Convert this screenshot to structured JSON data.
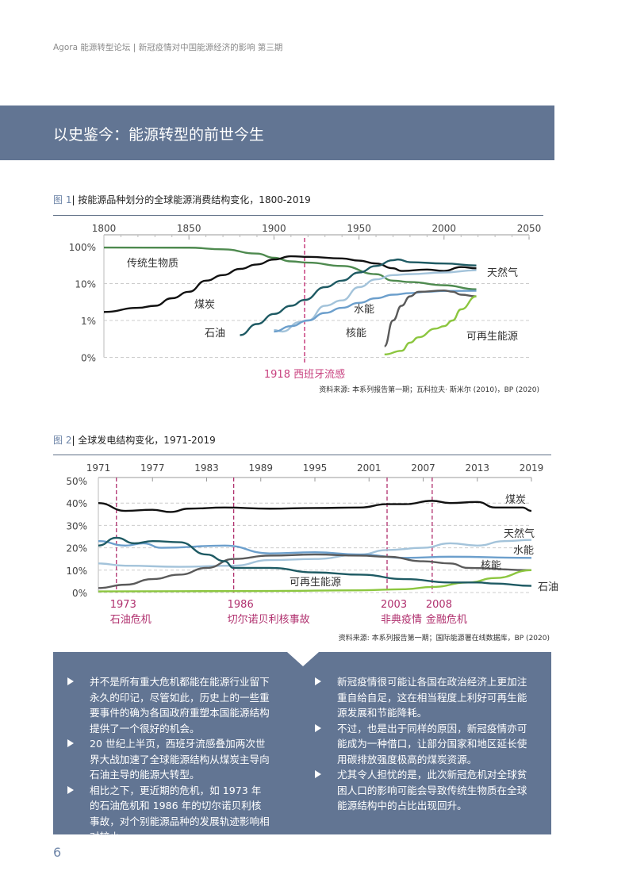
{
  "header": {
    "running_title": "Agora 能源转型论坛 | 新冠疫情对中国能源经济的影响 第三期"
  },
  "banner": {
    "title": "以史鉴今：能源转型的前世今生"
  },
  "figure1": {
    "label": "图 1",
    "caption": "| 按能源品种划分的全球能源消费结构变化，1800-2019",
    "source": "资料来源: 本系列报告第一期；瓦科拉夫· 斯米尔 (2010)，BP (2020)"
  },
  "figure2": {
    "label": "图 2",
    "caption": "| 全球发电结构变化，1971-2019",
    "source": "资料来源: 本系列报告第一期；国际能源署在线数据库，BP (2020)"
  },
  "chart_data": [
    {
      "type": "line",
      "title": "按能源品种划分的全球能源消费结构变化，1800-2019",
      "yscale": "log",
      "xlim": [
        1800,
        2050
      ],
      "ylim": [
        0.1,
        100
      ],
      "xticks": [
        "1800",
        "1850",
        "1900",
        "1950",
        "2000",
        "2050"
      ],
      "yticks": [
        {
          "v": 100,
          "label": "100%"
        },
        {
          "v": 10,
          "label": "10%"
        },
        {
          "v": 1,
          "label": "1%"
        },
        {
          "v": 0.1,
          "label": "0%"
        }
      ],
      "grid": "horizontal dashed",
      "annotations": [
        {
          "x": 1918,
          "label": "1918 西班牙流感"
        }
      ],
      "series": [
        {
          "name": "传统生物质",
          "color": "#4e8a4f",
          "points": [
            [
              1800,
              95
            ],
            [
              1850,
              94
            ],
            [
              1870,
              85
            ],
            [
              1890,
              65
            ],
            [
              1900,
              50
            ],
            [
              1910,
              40
            ],
            [
              1920,
              37
            ],
            [
              1940,
              30
            ],
            [
              1960,
              18
            ],
            [
              1970,
              12
            ],
            [
              1980,
              11
            ],
            [
              2000,
              9
            ],
            [
              2019,
              7
            ]
          ]
        },
        {
          "name": "煤炭",
          "color": "#111111",
          "points": [
            [
              1800,
              1.7
            ],
            [
              1820,
              2.2
            ],
            [
              1830,
              2.5
            ],
            [
              1840,
              4
            ],
            [
              1850,
              6
            ],
            [
              1860,
              12
            ],
            [
              1870,
              17
            ],
            [
              1880,
              25
            ],
            [
              1890,
              33
            ],
            [
              1900,
              45
            ],
            [
              1910,
              55
            ],
            [
              1920,
              53
            ],
            [
              1940,
              48
            ],
            [
              1950,
              42
            ],
            [
              1960,
              35
            ],
            [
              1970,
              26
            ],
            [
              1975,
              22
            ],
            [
              1990,
              24
            ],
            [
              2000,
              22
            ],
            [
              2010,
              28
            ],
            [
              2019,
              26
            ]
          ]
        },
        {
          "name": "石油",
          "color": "#1e5a63",
          "points": [
            [
              1880,
              0.4
            ],
            [
              1890,
              0.8
            ],
            [
              1900,
              1.5
            ],
            [
              1910,
              2.5
            ],
            [
              1918,
              3.6
            ],
            [
              1930,
              8
            ],
            [
              1940,
              12
            ],
            [
              1950,
              20
            ],
            [
              1960,
              30
            ],
            [
              1970,
              43
            ],
            [
              1973,
              45
            ],
            [
              1980,
              38
            ],
            [
              2000,
              35
            ],
            [
              2019,
              31
            ]
          ]
        },
        {
          "name": "天然气",
          "color": "#a3c3da",
          "points": [
            [
              1900,
              0.55
            ],
            [
              1905,
              0.5
            ],
            [
              1915,
              0.9
            ],
            [
              1920,
              1.0
            ],
            [
              1930,
              2.5
            ],
            [
              1940,
              3.5
            ],
            [
              1950,
              8
            ],
            [
              1960,
              13
            ],
            [
              1970,
              17
            ],
            [
              1980,
              18
            ],
            [
              2000,
              20
            ],
            [
              2019,
              23
            ]
          ]
        },
        {
          "name": "水能",
          "color": "#6c9fcc",
          "points": [
            [
              1900,
              0.5
            ],
            [
              1910,
              0.7
            ],
            [
              1920,
              1.0
            ],
            [
              1930,
              1.6
            ],
            [
              1940,
              2.2
            ],
            [
              1950,
              3
            ],
            [
              1960,
              4
            ],
            [
              1970,
              5
            ],
            [
              1980,
              5.5
            ],
            [
              1990,
              6
            ],
            [
              2000,
              6.3
            ],
            [
              2019,
              6.4
            ]
          ]
        },
        {
          "name": "核能",
          "color": "#5a5a5a",
          "points": [
            [
              1965,
              0.2
            ],
            [
              1970,
              1
            ],
            [
              1975,
              2.5
            ],
            [
              1980,
              4.5
            ],
            [
              1985,
              6
            ],
            [
              2000,
              6.5
            ],
            [
              2005,
              6
            ],
            [
              2010,
              5
            ],
            [
              2019,
              4.5
            ]
          ]
        },
        {
          "name": "可再生能源",
          "color": "#8cc63f",
          "points": [
            [
              1965,
              0.12
            ],
            [
              1975,
              0.15
            ],
            [
              1980,
              0.25
            ],
            [
              1985,
              0.35
            ],
            [
              1995,
              0.6
            ],
            [
              2000,
              0.7
            ],
            [
              2005,
              1
            ],
            [
              2010,
              2
            ],
            [
              2019,
              4.5
            ]
          ]
        }
      ]
    },
    {
      "type": "line",
      "title": "全球发电结构变化，1971-2019",
      "xlim": [
        1971,
        2019
      ],
      "ylim": [
        0,
        50
      ],
      "xticks": [
        "1971",
        "1977",
        "1983",
        "1989",
        "1995",
        "2001",
        "2007",
        "2013",
        "2019"
      ],
      "yticks": [
        "50%",
        "40%",
        "30%",
        "20%",
        "10%",
        "0%"
      ],
      "grid": "horizontal dashed",
      "annotations": [
        {
          "x": 1973,
          "year": "1973",
          "label": "石油危机"
        },
        {
          "x": 1986,
          "year": "1986",
          "label": "切尔诺贝利核事故"
        },
        {
          "x": 2003,
          "year": "2003",
          "label": "非典疫情"
        },
        {
          "x": 2008,
          "year": "2008",
          "label": "金融危机"
        }
      ],
      "series": [
        {
          "name": "煤炭",
          "color": "#111111",
          "points": [
            [
              1971,
              40
            ],
            [
              1974,
              36.5
            ],
            [
              1977,
              37
            ],
            [
              1979,
              36
            ],
            [
              1981,
              37.5
            ],
            [
              1985,
              38
            ],
            [
              1990,
              37.5
            ],
            [
              1995,
              37.8
            ],
            [
              2000,
              38
            ],
            [
              2003,
              39.5
            ],
            [
              2005,
              39.5
            ],
            [
              2008,
              41
            ],
            [
              2010,
              40
            ],
            [
              2013,
              40.5
            ],
            [
              2015,
              38
            ],
            [
              2018,
              38
            ],
            [
              2019,
              36.5
            ]
          ]
        },
        {
          "name": "天然气",
          "color": "#a3c3da",
          "points": [
            [
              1971,
              13
            ],
            [
              1974,
              12
            ],
            [
              1980,
              11.5
            ],
            [
              1986,
              12
            ],
            [
              1990,
              14.5
            ],
            [
              1995,
              15
            ],
            [
              2000,
              17
            ],
            [
              2003,
              19
            ],
            [
              2007,
              20
            ],
            [
              2010,
              22
            ],
            [
              2013,
              21
            ],
            [
              2016,
              23
            ],
            [
              2019,
              23.5
            ]
          ]
        },
        {
          "name": "水能",
          "color": "#6c9fcc",
          "points": [
            [
              1971,
              23
            ],
            [
              1974,
              21
            ],
            [
              1976,
              22
            ],
            [
              1978,
              20
            ],
            [
              1985,
              21
            ],
            [
              1990,
              17.5
            ],
            [
              1995,
              18
            ],
            [
              2000,
              17
            ],
            [
              2005,
              15.5
            ],
            [
              2010,
              16
            ],
            [
              2019,
              15.5
            ]
          ]
        },
        {
          "name": "核能",
          "color": "#5a5a5a",
          "points": [
            [
              1971,
              2
            ],
            [
              1974,
              3.5
            ],
            [
              1977,
              6
            ],
            [
              1980,
              8
            ],
            [
              1983,
              11
            ],
            [
              1986,
              15
            ],
            [
              1990,
              16.5
            ],
            [
              1995,
              17
            ],
            [
              2000,
              16.5
            ],
            [
              2003,
              16
            ],
            [
              2007,
              14
            ],
            [
              2010,
              13
            ],
            [
              2012,
              11
            ],
            [
              2019,
              10
            ]
          ]
        },
        {
          "name": "可再生能源",
          "color": "#8cc63f",
          "points": [
            [
              1971,
              0.5
            ],
            [
              1990,
              0.7
            ],
            [
              2000,
              1
            ],
            [
              2005,
              1.5
            ],
            [
              2008,
              2.5
            ],
            [
              2012,
              4.5
            ],
            [
              2015,
              6.5
            ],
            [
              2019,
              10
            ]
          ]
        },
        {
          "name": "石油",
          "color": "#1e5a63",
          "points": [
            [
              1971,
              21
            ],
            [
              1973,
              24.5
            ],
            [
              1975,
              22
            ],
            [
              1977,
              23
            ],
            [
              1980,
              22.5
            ],
            [
              1983,
              17
            ],
            [
              1985,
              14
            ],
            [
              1986,
              11
            ],
            [
              1990,
              11
            ],
            [
              1995,
              9
            ],
            [
              2000,
              8
            ],
            [
              2005,
              6
            ],
            [
              2010,
              4.5
            ],
            [
              2013,
              4.5
            ],
            [
              2015,
              4
            ],
            [
              2019,
              3
            ]
          ]
        }
      ]
    }
  ],
  "bullets_left": [
    "并不是所有重大危机都能在能源行业留下永久的印记，尽管如此，历史上的一些重要事件的确为各国政府重塑本国能源结构提供了一个很好的机会。",
    "20 世纪上半页，西班牙流感叠加两次世界大战加速了全球能源结构从煤炭主导向石油主导的能源大转型。",
    "相比之下，更近期的危机，如 1973 年的石油危机和 1986 年的切尔诺贝利核事故，对个别能源品种的发展轨迹影响相对较小。"
  ],
  "bullets_right": [
    "新冠疫情很可能让各国在政治经济上更加注重自给自足，这在相当程度上利好可再生能源发展和节能降耗。",
    "不过，也是出于同样的原因，新冠疫情亦可能成为一种借口，让部分国家和地区延长使用碳排放强度极高的煤炭资源。",
    "尤其令人担忧的是，此次新冠危机对全球贫困人口的影响可能会导致传统生物质在全球能源结构中的占比出现回升。"
  ],
  "page_number": "6"
}
